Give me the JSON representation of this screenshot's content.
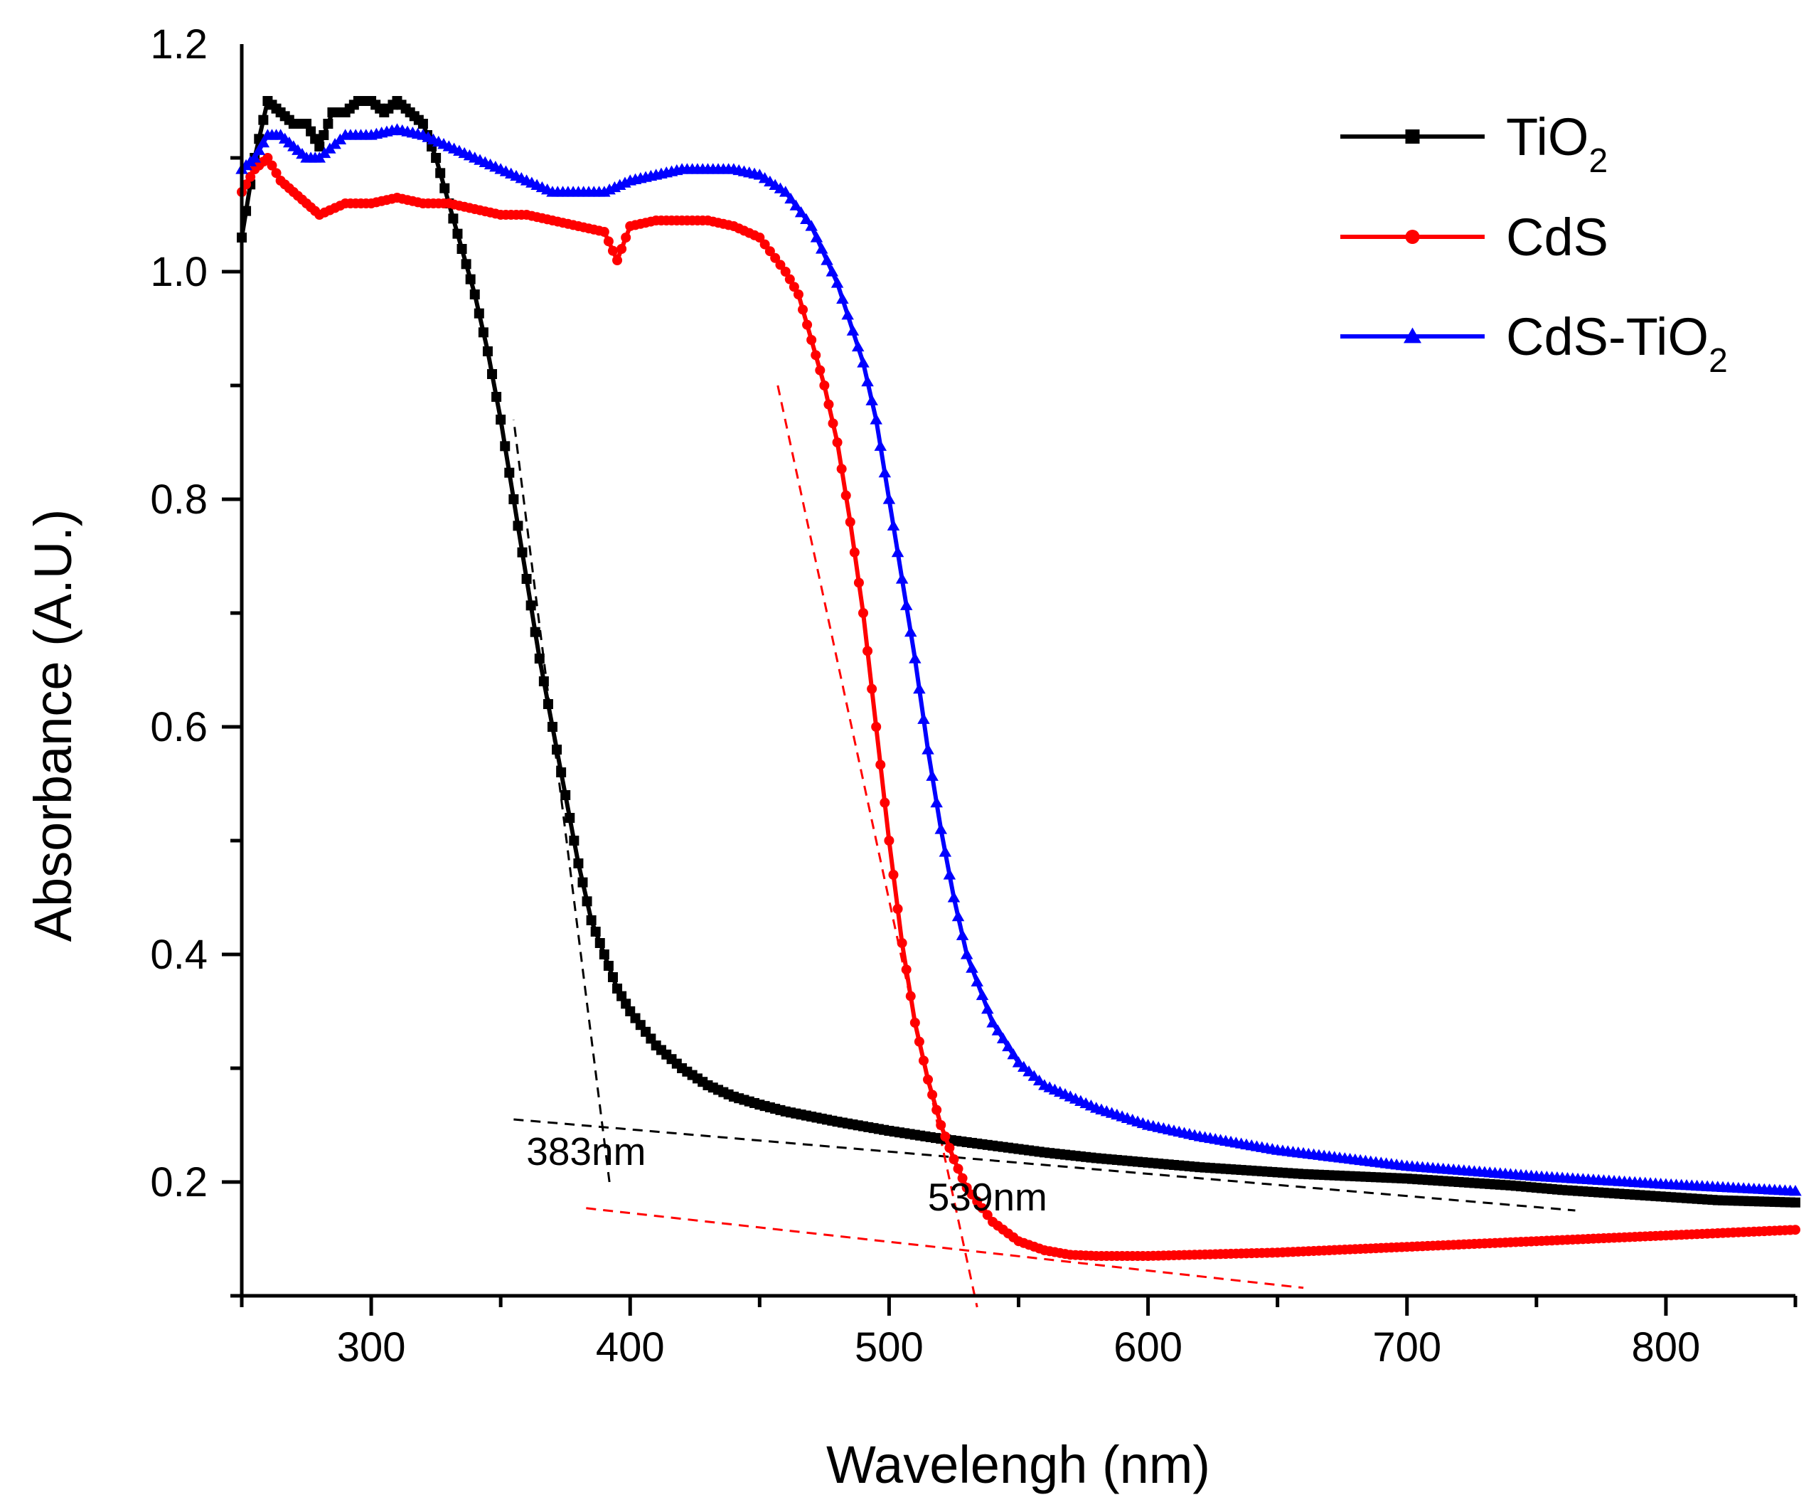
{
  "chart_data": {
    "type": "line",
    "title": "",
    "xlabel": "Wavelengh (nm)",
    "ylabel": "Absorbance (A.U.)",
    "xlim": [
      250,
      850
    ],
    "ylim": [
      0.1,
      1.2
    ],
    "xticks": [
      300,
      400,
      500,
      600,
      700,
      800
    ],
    "yticks": [
      0.2,
      0.4,
      0.6,
      0.8,
      1.0,
      1.2
    ],
    "xtick_labels": [
      "300",
      "400",
      "500",
      "600",
      "700",
      "800"
    ],
    "ytick_labels": [
      "0.2",
      "0.4",
      "0.6",
      "0.8",
      "1.0",
      "1.2"
    ],
    "grid": false,
    "legend_position": "top-right",
    "series": [
      {
        "name": "TiO2",
        "label_main": "TiO",
        "label_sub": "2",
        "color": "#000000",
        "marker": "square",
        "x": [
          250,
          255,
          260,
          265,
          270,
          275,
          280,
          285,
          290,
          295,
          300,
          305,
          310,
          315,
          320,
          325,
          330,
          335,
          340,
          345,
          350,
          355,
          360,
          365,
          370,
          375,
          380,
          385,
          390,
          395,
          400,
          410,
          420,
          430,
          440,
          450,
          460,
          480,
          500,
          520,
          540,
          560,
          580,
          600,
          620,
          640,
          660,
          680,
          700,
          720,
          740,
          760,
          780,
          800,
          820,
          850
        ],
        "y": [
          1.03,
          1.1,
          1.15,
          1.14,
          1.13,
          1.13,
          1.11,
          1.14,
          1.14,
          1.15,
          1.15,
          1.14,
          1.15,
          1.14,
          1.13,
          1.1,
          1.06,
          1.02,
          0.98,
          0.93,
          0.87,
          0.8,
          0.73,
          0.66,
          0.6,
          0.54,
          0.48,
          0.43,
          0.4,
          0.37,
          0.35,
          0.32,
          0.3,
          0.285,
          0.275,
          0.268,
          0.262,
          0.253,
          0.245,
          0.238,
          0.232,
          0.226,
          0.221,
          0.217,
          0.213,
          0.21,
          0.207,
          0.205,
          0.203,
          0.2,
          0.197,
          0.193,
          0.19,
          0.187,
          0.184,
          0.182
        ]
      },
      {
        "name": "CdS",
        "label_main": "CdS",
        "label_sub": "",
        "color": "#ff0000",
        "marker": "circle",
        "x": [
          250,
          255,
          260,
          265,
          270,
          275,
          280,
          290,
          300,
          310,
          320,
          330,
          340,
          350,
          360,
          370,
          380,
          390,
          395,
          400,
          410,
          420,
          430,
          440,
          450,
          460,
          465,
          470,
          475,
          480,
          485,
          490,
          495,
          500,
          505,
          510,
          515,
          520,
          525,
          530,
          540,
          550,
          560,
          570,
          580,
          600,
          650,
          700,
          750,
          800,
          850
        ],
        "y": [
          1.07,
          1.09,
          1.1,
          1.08,
          1.07,
          1.06,
          1.05,
          1.06,
          1.06,
          1.065,
          1.06,
          1.06,
          1.055,
          1.05,
          1.05,
          1.045,
          1.04,
          1.035,
          1.01,
          1.04,
          1.045,
          1.045,
          1.045,
          1.04,
          1.03,
          1.0,
          0.98,
          0.94,
          0.9,
          0.85,
          0.78,
          0.7,
          0.6,
          0.5,
          0.41,
          0.34,
          0.29,
          0.25,
          0.22,
          0.195,
          0.165,
          0.148,
          0.14,
          0.136,
          0.135,
          0.135,
          0.138,
          0.143,
          0.148,
          0.153,
          0.158
        ]
      },
      {
        "name": "CdS-TiO2",
        "label_main": "CdS-TiO",
        "label_sub": "2",
        "color": "#0000ff",
        "marker": "triangle",
        "x": [
          250,
          255,
          260,
          265,
          270,
          275,
          280,
          290,
          300,
          310,
          320,
          330,
          340,
          350,
          360,
          370,
          380,
          390,
          400,
          410,
          420,
          430,
          440,
          450,
          460,
          470,
          480,
          490,
          495,
          500,
          505,
          510,
          515,
          520,
          525,
          530,
          540,
          550,
          560,
          580,
          600,
          620,
          650,
          700,
          750,
          800,
          850
        ],
        "y": [
          1.09,
          1.1,
          1.12,
          1.12,
          1.11,
          1.1,
          1.1,
          1.12,
          1.12,
          1.125,
          1.12,
          1.11,
          1.1,
          1.09,
          1.08,
          1.07,
          1.07,
          1.07,
          1.08,
          1.085,
          1.09,
          1.09,
          1.09,
          1.085,
          1.07,
          1.04,
          0.99,
          0.92,
          0.87,
          0.8,
          0.73,
          0.66,
          0.58,
          0.51,
          0.45,
          0.4,
          0.34,
          0.305,
          0.285,
          0.265,
          0.25,
          0.24,
          0.228,
          0.214,
          0.205,
          0.198,
          0.192
        ]
      }
    ],
    "tangent_lines": [
      {
        "color": "#000000",
        "x": [
          392,
          355
        ],
        "y": [
          0.2,
          0.87
        ]
      },
      {
        "color": "#000000",
        "x": [
          355,
          765
        ],
        "y": [
          0.255,
          0.175
        ]
      },
      {
        "color": "#ff0000",
        "x": [
          457,
          534
        ],
        "y": [
          0.9,
          0.09
        ]
      },
      {
        "color": "#ff0000",
        "x": [
          383,
          660
        ],
        "y": [
          0.177,
          0.107
        ]
      }
    ],
    "annotations": [
      {
        "text": "383nm",
        "x": 383,
        "y": 0.215
      },
      {
        "text": "539nm",
        "x": 538,
        "y": 0.175
      }
    ]
  }
}
